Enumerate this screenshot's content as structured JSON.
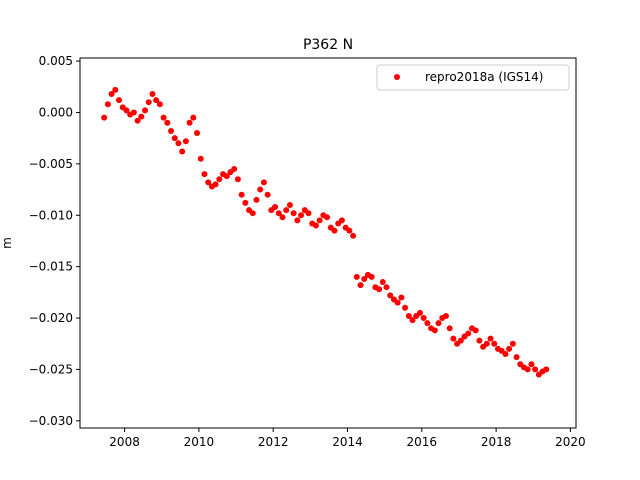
{
  "chart_data": {
    "type": "scatter",
    "title": "P362 N",
    "xlabel": "",
    "ylabel": "m",
    "xlim": [
      2006.8,
      2020.15
    ],
    "ylim": [
      -0.0307,
      0.0053
    ],
    "xticks": [
      2008,
      2010,
      2012,
      2014,
      2016,
      2018,
      2020
    ],
    "xtick_labels": [
      "2008",
      "2010",
      "2012",
      "2014",
      "2016",
      "2018",
      "2020"
    ],
    "yticks": [
      0.005,
      0.0,
      -0.005,
      -0.01,
      -0.015,
      -0.02,
      -0.025,
      -0.03
    ],
    "ytick_labels": [
      "0.005",
      "0.000",
      "−0.005",
      "−0.010",
      "−0.015",
      "−0.020",
      "−0.025",
      "−0.030"
    ],
    "grid": false,
    "legend_position": "top-right",
    "series": [
      {
        "name": "repro2018a (IGS14)",
        "color": "#ff0000",
        "marker": "circle",
        "x": [
          2007.45,
          2007.55,
          2007.65,
          2007.75,
          2007.85,
          2007.95,
          2008.05,
          2008.15,
          2008.25,
          2008.35,
          2008.45,
          2008.55,
          2008.65,
          2008.75,
          2008.85,
          2008.95,
          2009.05,
          2009.15,
          2009.25,
          2009.35,
          2009.45,
          2009.55,
          2009.65,
          2009.75,
          2009.85,
          2009.95,
          2010.05,
          2010.15,
          2010.25,
          2010.35,
          2010.45,
          2010.55,
          2010.65,
          2010.75,
          2010.85,
          2010.95,
          2011.05,
          2011.15,
          2011.25,
          2011.35,
          2011.45,
          2011.55,
          2011.65,
          2011.75,
          2011.85,
          2011.95,
          2012.05,
          2012.15,
          2012.25,
          2012.35,
          2012.45,
          2012.55,
          2012.65,
          2012.75,
          2012.85,
          2012.95,
          2013.05,
          2013.15,
          2013.25,
          2013.35,
          2013.45,
          2013.55,
          2013.65,
          2013.75,
          2013.85,
          2013.95,
          2014.05,
          2014.15,
          2014.25,
          2014.35,
          2014.45,
          2014.55,
          2014.65,
          2014.75,
          2014.85,
          2014.95,
          2015.05,
          2015.15,
          2015.25,
          2015.35,
          2015.45,
          2015.55,
          2015.65,
          2015.75,
          2015.85,
          2015.95,
          2016.05,
          2016.15,
          2016.25,
          2016.35,
          2016.45,
          2016.55,
          2016.65,
          2016.75,
          2016.85,
          2016.95,
          2017.05,
          2017.15,
          2017.25,
          2017.35,
          2017.45,
          2017.55,
          2017.65,
          2017.75,
          2017.85,
          2017.95,
          2018.05,
          2018.15,
          2018.25,
          2018.35,
          2018.45,
          2018.55,
          2018.65,
          2018.75,
          2018.85,
          2018.95,
          2019.05,
          2019.15,
          2019.25,
          2019.35
        ],
        "y": [
          -0.0005,
          0.0008,
          0.0018,
          0.0022,
          0.0012,
          0.0005,
          0.0002,
          -0.0002,
          0.0,
          -0.0008,
          -0.0004,
          0.0002,
          0.001,
          0.0018,
          0.0012,
          0.0008,
          -0.0005,
          -0.001,
          -0.0018,
          -0.0025,
          -0.003,
          -0.0038,
          -0.0028,
          -0.001,
          -0.0005,
          -0.002,
          -0.0045,
          -0.006,
          -0.0068,
          -0.0072,
          -0.007,
          -0.0065,
          -0.006,
          -0.0062,
          -0.0058,
          -0.0055,
          -0.0065,
          -0.008,
          -0.0088,
          -0.0095,
          -0.0098,
          -0.0085,
          -0.0075,
          -0.0068,
          -0.008,
          -0.0095,
          -0.0092,
          -0.0098,
          -0.0102,
          -0.0095,
          -0.009,
          -0.0098,
          -0.0105,
          -0.01,
          -0.0095,
          -0.0098,
          -0.0108,
          -0.011,
          -0.0105,
          -0.01,
          -0.0102,
          -0.0112,
          -0.0115,
          -0.0108,
          -0.0105,
          -0.0112,
          -0.0115,
          -0.012,
          -0.016,
          -0.0168,
          -0.0162,
          -0.0158,
          -0.016,
          -0.017,
          -0.0172,
          -0.0165,
          -0.017,
          -0.0178,
          -0.0182,
          -0.0185,
          -0.018,
          -0.019,
          -0.0198,
          -0.0202,
          -0.0198,
          -0.0195,
          -0.02,
          -0.0205,
          -0.021,
          -0.0212,
          -0.0205,
          -0.02,
          -0.0198,
          -0.021,
          -0.022,
          -0.0225,
          -0.0222,
          -0.0218,
          -0.0215,
          -0.021,
          -0.0212,
          -0.0222,
          -0.0228,
          -0.0225,
          -0.022,
          -0.0225,
          -0.023,
          -0.0232,
          -0.0235,
          -0.023,
          -0.0225,
          -0.0238,
          -0.0245,
          -0.0248,
          -0.025,
          -0.0245,
          -0.025,
          -0.0255,
          -0.0252,
          -0.025
        ]
      }
    ]
  }
}
